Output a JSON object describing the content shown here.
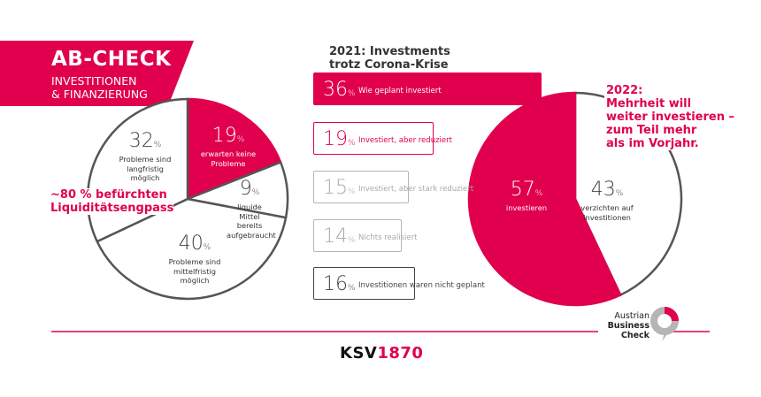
{
  "header": {
    "title": "AB-CHECK",
    "subtitle_line1": "INVESTITIONEN",
    "subtitle_line2": "& FINANZIERUNG"
  },
  "colors": {
    "accent": "#e0004d",
    "dark": "#444444",
    "light_gray": "#b5b5b5"
  },
  "chart_data": [
    {
      "type": "pie",
      "slices": [
        {
          "value": 19,
          "pct": "19",
          "unit": "%",
          "label": "erwarten keine Probleme",
          "highlight": true
        },
        {
          "value": 9,
          "pct": "9",
          "unit": "%",
          "label": "liquide Mittel bereits aufgebraucht"
        },
        {
          "value": 40,
          "pct": "40",
          "unit": "%",
          "label": "Probleme sind mittelfristig möglich"
        },
        {
          "value": 32,
          "pct": "32",
          "unit": "%",
          "label": "Probleme sind langfristig möglich"
        }
      ],
      "annotation_line1": "~80 % befürchten",
      "annotation_line2": "Liquiditätsengpass"
    },
    {
      "type": "bar",
      "title_line1": "2021: Investments",
      "title_line2": "trotz Corona-Krise",
      "bars": [
        {
          "value": 36,
          "pct": "36",
          "unit": "%",
          "label": "Wie geplant investiert",
          "style": "filled"
        },
        {
          "value": 19,
          "pct": "19",
          "unit": "%",
          "label": "Investiert, aber reduziert",
          "style": "accent-outline"
        },
        {
          "value": 15,
          "pct": "15",
          "unit": "%",
          "label": "Investiert, aber stark reduziert",
          "style": "light-outline"
        },
        {
          "value": 14,
          "pct": "14",
          "unit": "%",
          "label": "Nichts realisiert",
          "style": "light-outline"
        },
        {
          "value": 16,
          "pct": "16",
          "unit": "%",
          "label": "Investitionen waren nicht geplant",
          "style": "dark-outline"
        }
      ]
    },
    {
      "type": "pie",
      "slices": [
        {
          "value": 43,
          "pct": "43",
          "unit": "%",
          "label_line1": "verzichten auf",
          "label_line2": "Investitionen"
        },
        {
          "value": 57,
          "pct": "57",
          "unit": "%",
          "label_line1": "investieren",
          "highlight": true
        }
      ],
      "annotation": [
        "2022:",
        "Mehrheit will",
        "weiter investieren –",
        "zum Teil mehr",
        "als im Vorjahr."
      ]
    }
  ],
  "footer": {
    "logo_brand": "KSV",
    "logo_year": "1870",
    "abc_line1": "Austrian",
    "abc_line2": "Business",
    "abc_line3": "Check"
  }
}
